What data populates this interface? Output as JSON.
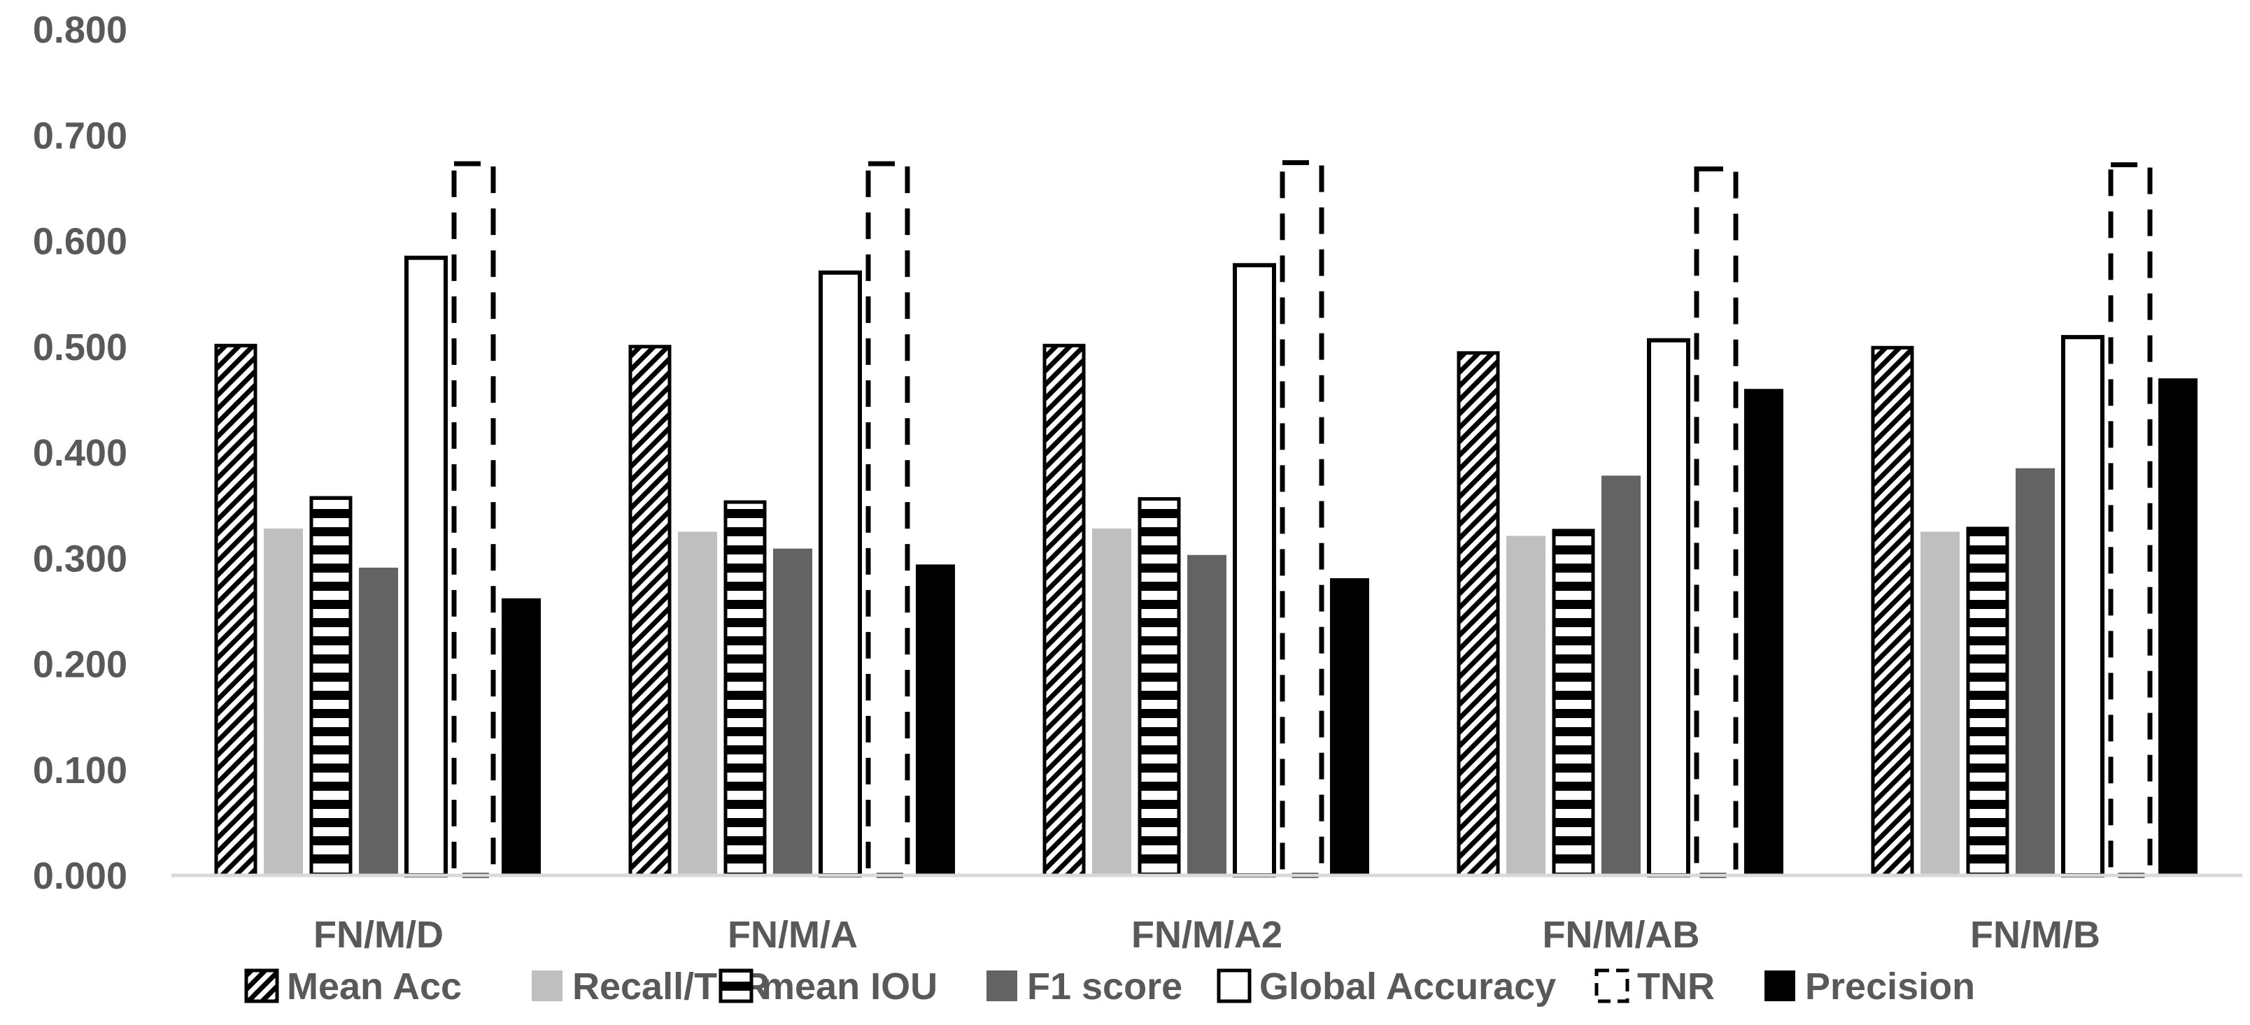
{
  "chart_data": {
    "type": "bar",
    "categories": [
      "FN/M/D",
      "FN/M/A",
      "FN/M/A2",
      "FN/M/AB",
      "FN/M/B"
    ],
    "series": [
      {
        "name": "Mean Acc",
        "values": [
          0.501,
          0.5,
          0.501,
          0.494,
          0.499
        ],
        "pattern": "diagonal-hatch"
      },
      {
        "name": "Recall/TPR",
        "values": [
          0.328,
          0.325,
          0.328,
          0.321,
          0.325
        ],
        "pattern": "light-gray"
      },
      {
        "name": "mean IOU",
        "values": [
          0.357,
          0.353,
          0.356,
          0.326,
          0.328
        ],
        "pattern": "horizontal-stripes"
      },
      {
        "name": "F1 score",
        "values": [
          0.291,
          0.309,
          0.303,
          0.378,
          0.385
        ],
        "pattern": "dark-gray"
      },
      {
        "name": "Global  Accuracy",
        "values": [
          0.584,
          0.57,
          0.577,
          0.506,
          0.509
        ],
        "pattern": "white"
      },
      {
        "name": "TNR",
        "values": [
          0.673,
          0.673,
          0.674,
          0.668,
          0.672
        ],
        "pattern": "dashed-outline"
      },
      {
        "name": "Precision",
        "values": [
          0.262,
          0.294,
          0.281,
          0.46,
          0.47
        ],
        "pattern": "black"
      }
    ],
    "yticks": [
      "0.000",
      "0.100",
      "0.200",
      "0.300",
      "0.400",
      "0.500",
      "0.600",
      "0.700",
      "0.800"
    ],
    "ylim": [
      0,
      0.8
    ],
    "grid": false,
    "legend_position": "bottom",
    "title": "",
    "xlabel": "",
    "ylabel": ""
  },
  "colors": {
    "axis": "#d9d9d9",
    "text": "#595959",
    "light_gray": "#bfbfbf",
    "dark_gray": "#636363",
    "black": "#000000"
  }
}
